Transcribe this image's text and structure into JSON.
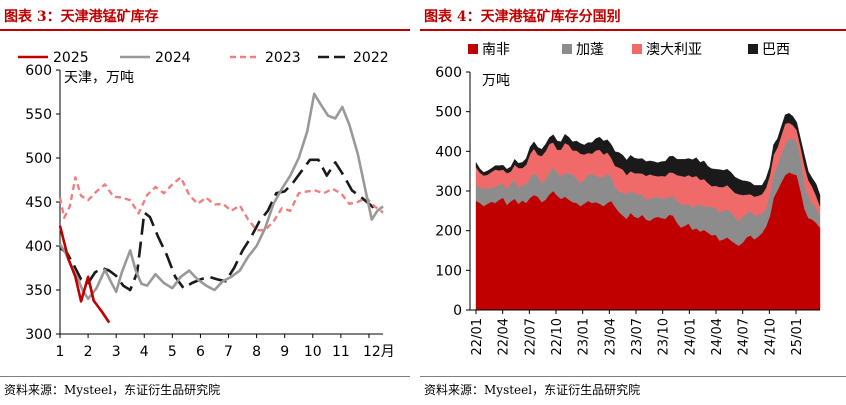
{
  "left": {
    "title": "图表 3：天津港锰矿库存",
    "source": "资料来源：Mysteel，东证衍生品研究院",
    "chart_data": {
      "type": "line",
      "unit_label": "天津，万吨",
      "xlabel_suffix": "月",
      "xlim": [
        1,
        12.5
      ],
      "ylim": [
        300,
        600
      ],
      "y_ticks": [
        300,
        350,
        400,
        450,
        500,
        550,
        600
      ],
      "x_ticks": [
        1,
        2,
        3,
        4,
        5,
        6,
        7,
        8,
        9,
        10,
        11,
        12
      ],
      "x_tick_labels": [
        "1",
        "2",
        "3",
        "4",
        "5",
        "6",
        "7",
        "8",
        "9",
        "10",
        "11",
        "12月"
      ],
      "legend_position": "top",
      "series": [
        {
          "name": "2025",
          "color": "#c00000",
          "style": "solid",
          "width": 2.6,
          "x": [
            1.0,
            1.3,
            1.55,
            1.75,
            2.0,
            2.2,
            2.5,
            2.75
          ],
          "y": [
            423,
            385,
            365,
            337,
            365,
            338,
            325,
            313
          ]
        },
        {
          "name": "2024",
          "color": "#999999",
          "style": "solid",
          "width": 2.6,
          "x": [
            1.0,
            1.2,
            1.4,
            1.6,
            1.8,
            2.0,
            2.3,
            2.6,
            2.8,
            3.0,
            3.2,
            3.5,
            3.7,
            3.9,
            4.1,
            4.4,
            4.7,
            5.0,
            5.3,
            5.6,
            5.9,
            6.2,
            6.5,
            6.8,
            7.1,
            7.4,
            7.7,
            8.0,
            8.3,
            8.6,
            8.9,
            9.2,
            9.5,
            9.8,
            10.05,
            10.3,
            10.55,
            10.8,
            11.05,
            11.3,
            11.6,
            11.9,
            12.1,
            12.3,
            12.5
          ],
          "y": [
            402,
            392,
            378,
            365,
            350,
            340,
            352,
            373,
            360,
            348,
            370,
            395,
            372,
            357,
            355,
            368,
            358,
            352,
            365,
            372,
            362,
            355,
            350,
            360,
            365,
            372,
            388,
            400,
            420,
            448,
            465,
            480,
            500,
            530,
            573,
            560,
            548,
            545,
            558,
            538,
            505,
            460,
            430,
            440,
            445
          ]
        },
        {
          "name": "2023",
          "color": "#f07f7f",
          "style": "dash",
          "width": 2.4,
          "x": [
            1.0,
            1.15,
            1.35,
            1.55,
            1.75,
            2.0,
            2.3,
            2.6,
            2.9,
            3.2,
            3.5,
            3.8,
            4.1,
            4.4,
            4.7,
            5.0,
            5.3,
            5.6,
            5.9,
            6.2,
            6.5,
            6.8,
            7.1,
            7.4,
            7.7,
            8.0,
            8.3,
            8.6,
            8.9,
            9.2,
            9.5,
            9.8,
            10.1,
            10.4,
            10.7,
            11.0,
            11.3,
            11.6,
            11.9,
            12.2,
            12.5
          ],
          "y": [
            455,
            432,
            445,
            478,
            457,
            452,
            462,
            470,
            456,
            455,
            452,
            437,
            458,
            467,
            460,
            470,
            478,
            458,
            448,
            455,
            447,
            448,
            440,
            446,
            430,
            418,
            418,
            428,
            443,
            440,
            460,
            462,
            463,
            460,
            465,
            460,
            448,
            450,
            455,
            445,
            438
          ]
        },
        {
          "name": "2022",
          "color": "#1a1a1a",
          "style": "longdash",
          "width": 2.6,
          "x": [
            1.0,
            1.25,
            1.5,
            1.75,
            2.0,
            2.25,
            2.5,
            2.75,
            3.0,
            3.25,
            3.5,
            3.75,
            4.0,
            4.2,
            4.5,
            4.8,
            5.1,
            5.4,
            5.7,
            6.0,
            6.3,
            6.6,
            6.9,
            7.2,
            7.5,
            7.8,
            8.1,
            8.4,
            8.7,
            9.0,
            9.3,
            9.6,
            9.9,
            10.2,
            10.5,
            10.8,
            11.1,
            11.4,
            11.7,
            12.0,
            12.3
          ],
          "y": [
            398,
            392,
            378,
            362,
            358,
            370,
            375,
            372,
            366,
            355,
            350,
            370,
            438,
            433,
            410,
            390,
            365,
            352,
            358,
            362,
            365,
            362,
            360,
            375,
            395,
            410,
            428,
            440,
            460,
            462,
            472,
            485,
            498,
            498,
            480,
            495,
            480,
            463,
            456,
            448,
            440
          ]
        }
      ]
    }
  },
  "right": {
    "title": "图表 4：天津港锰矿库存分国别",
    "source": "资料来源：Mysteel，东证衍生品研究院",
    "chart_data": {
      "type": "area",
      "stacked": true,
      "unit_label": "万吨",
      "ylim": [
        0,
        600
      ],
      "y_ticks": [
        0,
        100,
        200,
        300,
        400,
        500,
        600
      ],
      "x_tick_labels": [
        "22/01",
        "22/04",
        "22/07",
        "22/10",
        "23/01",
        "23/04",
        "23/07",
        "23/10",
        "24/01",
        "24/04",
        "24/07",
        "24/10",
        "25/01"
      ],
      "legend_position": "top",
      "series": [
        {
          "name": "南非",
          "color": "#c00000",
          "values": [
            275,
            270,
            262,
            268,
            273,
            270,
            278,
            283,
            265,
            274,
            280,
            268,
            276,
            270,
            283,
            290,
            286,
            272,
            278,
            292,
            300,
            288,
            280,
            286,
            278,
            272,
            270,
            262,
            268,
            275,
            270,
            272,
            268,
            262,
            270,
            275,
            260,
            247,
            238,
            230,
            245,
            235,
            232,
            240,
            228,
            225,
            232,
            235,
            232,
            230,
            240,
            238,
            220,
            208,
            212,
            218,
            202,
            206,
            198,
            202,
            195,
            188,
            190,
            175,
            178,
            183,
            175,
            168,
            162,
            170,
            183,
            188,
            178,
            185,
            194,
            210,
            236,
            283,
            302,
            322,
            340,
            347,
            343,
            340,
            300,
            255,
            232,
            228,
            220,
            207
          ]
        },
        {
          "name": "加蓬",
          "color": "#8c8c8c",
          "values": [
            40,
            38,
            45,
            38,
            35,
            42,
            38,
            36,
            40,
            45,
            48,
            38,
            40,
            48,
            50,
            55,
            50,
            48,
            52,
            55,
            60,
            58,
            56,
            60,
            66,
            70,
            62,
            58,
            60,
            66,
            72,
            68,
            66,
            72,
            75,
            60,
            48,
            52,
            58,
            62,
            55,
            60,
            58,
            52,
            50,
            55,
            52,
            50,
            48,
            52,
            45,
            50,
            55,
            60,
            52,
            52,
            55,
            60,
            65,
            60,
            65,
            72,
            68,
            70,
            72,
            70,
            72,
            65,
            62,
            65,
            60,
            62,
            60,
            55,
            48,
            45,
            55,
            58,
            62,
            70,
            78,
            85,
            88,
            85,
            80,
            60,
            55,
            40,
            38,
            30
          ]
        },
        {
          "name": "澳大利亚",
          "color": "#f06a6a",
          "values": [
            45,
            38,
            32,
            35,
            40,
            42,
            36,
            35,
            40,
            30,
            38,
            52,
            42,
            48,
            60,
            62,
            55,
            68,
            70,
            72,
            62,
            58,
            68,
            75,
            72,
            60,
            70,
            74,
            64,
            55,
            52,
            62,
            70,
            58,
            52,
            48,
            55,
            60,
            58,
            48,
            50,
            50,
            55,
            52,
            60,
            62,
            55,
            52,
            58,
            55,
            62,
            58,
            65,
            70,
            72,
            70,
            78,
            72,
            65,
            68,
            60,
            52,
            55,
            65,
            60,
            62,
            58,
            62,
            68,
            55,
            48,
            42,
            48,
            48,
            50,
            52,
            48,
            50,
            46,
            48,
            52,
            40,
            35,
            28,
            30,
            48,
            40,
            42,
            30,
            25
          ]
        },
        {
          "name": "巴西",
          "color": "#1a1a1a",
          "values": [
            12,
            10,
            8,
            10,
            9,
            10,
            12,
            11,
            10,
            12,
            14,
            12,
            14,
            16,
            18,
            17,
            19,
            17,
            18,
            16,
            20,
            22,
            20,
            22,
            20,
            22,
            24,
            26,
            24,
            26,
            28,
            30,
            32,
            34,
            32,
            34,
            36,
            38,
            36,
            38,
            40,
            38,
            36,
            38,
            36,
            34,
            35,
            34,
            36,
            38,
            40,
            42,
            40,
            42,
            44,
            42,
            44,
            46,
            44,
            46,
            42,
            44,
            42,
            44,
            42,
            40,
            42,
            40,
            38,
            36,
            34,
            30,
            28,
            26,
            22,
            24,
            22,
            26,
            22,
            22,
            22,
            24,
            22,
            20,
            20,
            26,
            22,
            22,
            30,
            28
          ]
        }
      ]
    }
  }
}
